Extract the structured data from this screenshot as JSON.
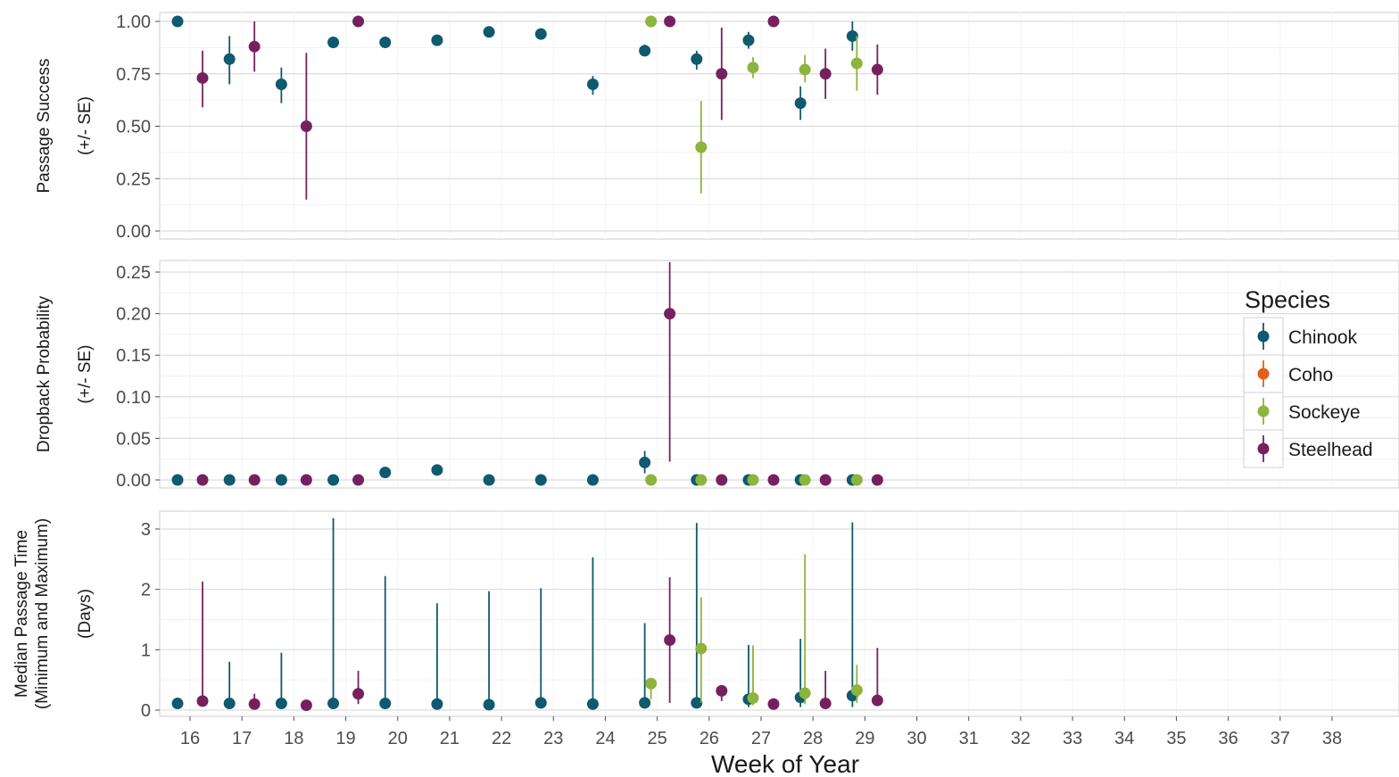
{
  "colors": {
    "Chinook": "#0f5a6e",
    "Coho": "#e0611e",
    "Sockeye": "#8db43c",
    "Steelhead": "#76215f"
  },
  "legend": {
    "title": "Species",
    "entries": [
      "Chinook",
      "Coho",
      "Sockeye",
      "Steelhead"
    ],
    "placement": "right"
  },
  "x_title": "Week of Year",
  "chart_data": [
    {
      "type": "scatter",
      "panel": "passage-success",
      "ylabel": [
        "Passage Success",
        "(+/- SE)"
      ],
      "ylim": [
        0,
        1
      ],
      "y_ticks": [
        "0.00",
        "0.25",
        "0.50",
        "0.75",
        "1.00"
      ],
      "y_tick_values": [
        0,
        0.25,
        0.5,
        0.75,
        1
      ],
      "x_ticks": [
        16,
        17,
        18,
        19,
        20,
        21,
        22,
        23,
        24,
        25,
        26,
        27,
        28,
        29,
        30,
        31,
        32,
        33,
        34,
        35,
        36,
        37,
        38
      ],
      "series": [
        {
          "name": "Chinook",
          "points": [
            {
              "x": 16,
              "y": 1.0,
              "lo": 1.0,
              "hi": 1.0
            },
            {
              "x": 17,
              "y": 0.82,
              "lo": 0.7,
              "hi": 0.93
            },
            {
              "x": 18,
              "y": 0.7,
              "lo": 0.61,
              "hi": 0.78
            },
            {
              "x": 19,
              "y": 0.9,
              "lo": 0.9,
              "hi": 0.9
            },
            {
              "x": 20,
              "y": 0.9,
              "lo": 0.9,
              "hi": 0.9
            },
            {
              "x": 21,
              "y": 0.91,
              "lo": 0.91,
              "hi": 0.91
            },
            {
              "x": 22,
              "y": 0.95,
              "lo": 0.95,
              "hi": 0.95
            },
            {
              "x": 23,
              "y": 0.94,
              "lo": 0.94,
              "hi": 0.94
            },
            {
              "x": 24,
              "y": 0.7,
              "lo": 0.65,
              "hi": 0.74
            },
            {
              "x": 25,
              "y": 0.86,
              "lo": 0.84,
              "hi": 0.89
            },
            {
              "x": 26,
              "y": 0.82,
              "lo": 0.77,
              "hi": 0.86
            },
            {
              "x": 27,
              "y": 0.91,
              "lo": 0.87,
              "hi": 0.95
            },
            {
              "x": 28,
              "y": 0.61,
              "lo": 0.53,
              "hi": 0.69
            },
            {
              "x": 29,
              "y": 0.93,
              "lo": 0.86,
              "hi": 1.0
            }
          ]
        },
        {
          "name": "Coho",
          "points": []
        },
        {
          "name": "Sockeye",
          "points": [
            {
              "x": 25,
              "y": 1.0,
              "lo": 1.0,
              "hi": 1.0
            },
            {
              "x": 26,
              "y": 0.4,
              "lo": 0.18,
              "hi": 0.62
            },
            {
              "x": 27,
              "y": 0.78,
              "lo": 0.73,
              "hi": 0.83
            },
            {
              "x": 28,
              "y": 0.77,
              "lo": 0.71,
              "hi": 0.84
            },
            {
              "x": 29,
              "y": 0.8,
              "lo": 0.67,
              "hi": 0.93
            }
          ]
        },
        {
          "name": "Steelhead",
          "points": [
            {
              "x": 16,
              "y": 0.73,
              "lo": 0.59,
              "hi": 0.86
            },
            {
              "x": 17,
              "y": 0.88,
              "lo": 0.76,
              "hi": 1.0
            },
            {
              "x": 18,
              "y": 0.5,
              "lo": 0.15,
              "hi": 0.85
            },
            {
              "x": 19,
              "y": 1.0,
              "lo": 1.0,
              "hi": 1.0
            },
            {
              "x": 25,
              "y": 1.0,
              "lo": 1.0,
              "hi": 1.0
            },
            {
              "x": 26,
              "y": 0.75,
              "lo": 0.53,
              "hi": 0.97
            },
            {
              "x": 27,
              "y": 1.0,
              "lo": 1.0,
              "hi": 1.0
            },
            {
              "x": 28,
              "y": 0.75,
              "lo": 0.63,
              "hi": 0.87
            },
            {
              "x": 29,
              "y": 0.77,
              "lo": 0.65,
              "hi": 0.89
            }
          ]
        }
      ]
    },
    {
      "type": "scatter",
      "panel": "dropback-probability",
      "ylabel": [
        "Dropback Probability",
        "(+/- SE)"
      ],
      "ylim": [
        0,
        0.25
      ],
      "y_ticks": [
        "0.00",
        "0.05",
        "0.10",
        "0.15",
        "0.20",
        "0.25"
      ],
      "y_tick_values": [
        0,
        0.05,
        0.1,
        0.15,
        0.2,
        0.25
      ],
      "x_ticks": [
        16,
        17,
        18,
        19,
        20,
        21,
        22,
        23,
        24,
        25,
        26,
        27,
        28,
        29,
        30,
        31,
        32,
        33,
        34,
        35,
        36,
        37,
        38
      ],
      "series": [
        {
          "name": "Chinook",
          "points": [
            {
              "x": 16,
              "y": 0,
              "lo": 0,
              "hi": 0
            },
            {
              "x": 17,
              "y": 0,
              "lo": 0,
              "hi": 0
            },
            {
              "x": 18,
              "y": 0,
              "lo": 0,
              "hi": 0
            },
            {
              "x": 19,
              "y": 0,
              "lo": 0,
              "hi": 0
            },
            {
              "x": 20,
              "y": 0.009,
              "lo": 0.009,
              "hi": 0.009
            },
            {
              "x": 21,
              "y": 0.012,
              "lo": 0.012,
              "hi": 0.012
            },
            {
              "x": 22,
              "y": 0,
              "lo": 0,
              "hi": 0
            },
            {
              "x": 23,
              "y": 0,
              "lo": 0,
              "hi": 0
            },
            {
              "x": 24,
              "y": 0,
              "lo": 0,
              "hi": 0
            },
            {
              "x": 25,
              "y": 0.021,
              "lo": 0.008,
              "hi": 0.035
            },
            {
              "x": 26,
              "y": 0,
              "lo": 0,
              "hi": 0
            },
            {
              "x": 27,
              "y": 0,
              "lo": 0,
              "hi": 0
            },
            {
              "x": 28,
              "y": 0,
              "lo": 0,
              "hi": 0
            },
            {
              "x": 29,
              "y": 0,
              "lo": 0,
              "hi": 0
            }
          ]
        },
        {
          "name": "Coho",
          "points": []
        },
        {
          "name": "Sockeye",
          "points": [
            {
              "x": 25,
              "y": 0,
              "lo": 0,
              "hi": 0
            },
            {
              "x": 26,
              "y": 0,
              "lo": 0,
              "hi": 0
            },
            {
              "x": 27,
              "y": 0,
              "lo": 0,
              "hi": 0
            },
            {
              "x": 28,
              "y": 0,
              "lo": 0,
              "hi": 0
            },
            {
              "x": 29,
              "y": 0,
              "lo": 0,
              "hi": 0
            }
          ]
        },
        {
          "name": "Steelhead",
          "points": [
            {
              "x": 16,
              "y": 0,
              "lo": 0,
              "hi": 0
            },
            {
              "x": 17,
              "y": 0,
              "lo": 0,
              "hi": 0
            },
            {
              "x": 18,
              "y": 0,
              "lo": 0,
              "hi": 0
            },
            {
              "x": 19,
              "y": 0,
              "lo": 0,
              "hi": 0
            },
            {
              "x": 25,
              "y": 0.2,
              "lo": 0.022,
              "hi": 0.262
            },
            {
              "x": 26,
              "y": 0,
              "lo": 0,
              "hi": 0
            },
            {
              "x": 27,
              "y": 0,
              "lo": 0,
              "hi": 0
            },
            {
              "x": 28,
              "y": 0,
              "lo": 0,
              "hi": 0
            },
            {
              "x": 29,
              "y": 0,
              "lo": 0,
              "hi": 0
            }
          ]
        }
      ]
    },
    {
      "type": "scatter",
      "panel": "median-passage-time",
      "ylabel": [
        "Median Passage Time",
        "(Minimum and Maximum)",
        "(Days)"
      ],
      "ylim": [
        0,
        3
      ],
      "y_ticks": [
        "0",
        "1",
        "2",
        "3"
      ],
      "y_tick_values": [
        0,
        1,
        2,
        3
      ],
      "x_ticks": [
        16,
        17,
        18,
        19,
        20,
        21,
        22,
        23,
        24,
        25,
        26,
        27,
        28,
        29,
        30,
        31,
        32,
        33,
        34,
        35,
        36,
        37,
        38
      ],
      "series": [
        {
          "name": "Chinook",
          "points": [
            {
              "x": 16,
              "y": 0.11,
              "lo": 0.04,
              "hi": 0.13
            },
            {
              "x": 17,
              "y": 0.11,
              "lo": 0.04,
              "hi": 0.8
            },
            {
              "x": 18,
              "y": 0.11,
              "lo": 0.04,
              "hi": 0.95
            },
            {
              "x": 19,
              "y": 0.11,
              "lo": 0.03,
              "hi": 3.18
            },
            {
              "x": 20,
              "y": 0.11,
              "lo": 0.03,
              "hi": 2.22
            },
            {
              "x": 21,
              "y": 0.1,
              "lo": 0.03,
              "hi": 1.77
            },
            {
              "x": 22,
              "y": 0.09,
              "lo": 0.03,
              "hi": 1.97
            },
            {
              "x": 23,
              "y": 0.12,
              "lo": 0.03,
              "hi": 2.02
            },
            {
              "x": 24,
              "y": 0.1,
              "lo": 0.03,
              "hi": 2.53
            },
            {
              "x": 25,
              "y": 0.12,
              "lo": 0.05,
              "hi": 1.44
            },
            {
              "x": 26,
              "y": 0.12,
              "lo": 0.03,
              "hi": 3.1
            },
            {
              "x": 27,
              "y": 0.18,
              "lo": 0.05,
              "hi": 1.08
            },
            {
              "x": 28,
              "y": 0.21,
              "lo": 0.05,
              "hi": 1.18
            },
            {
              "x": 29,
              "y": 0.24,
              "lo": 0.05,
              "hi": 3.11
            }
          ]
        },
        {
          "name": "Coho",
          "points": []
        },
        {
          "name": "Sockeye",
          "points": [
            {
              "x": 25,
              "y": 0.44,
              "lo": 0.18,
              "hi": 0.44
            },
            {
              "x": 26,
              "y": 1.02,
              "lo": 0.12,
              "hi": 1.87
            },
            {
              "x": 27,
              "y": 0.2,
              "lo": 0.08,
              "hi": 1.07
            },
            {
              "x": 28,
              "y": 0.28,
              "lo": 0.1,
              "hi": 2.58
            },
            {
              "x": 29,
              "y": 0.33,
              "lo": 0.12,
              "hi": 0.75
            }
          ]
        },
        {
          "name": "Steelhead",
          "points": [
            {
              "x": 16,
              "y": 0.15,
              "lo": 0.08,
              "hi": 2.13
            },
            {
              "x": 17,
              "y": 0.1,
              "lo": 0.05,
              "hi": 0.27
            },
            {
              "x": 18,
              "y": 0.08,
              "lo": 0.05,
              "hi": 0.1
            },
            {
              "x": 19,
              "y": 0.27,
              "lo": 0.1,
              "hi": 0.65
            },
            {
              "x": 25,
              "y": 1.16,
              "lo": 0.12,
              "hi": 2.2
            },
            {
              "x": 26,
              "y": 0.32,
              "lo": 0.15,
              "hi": 0.32
            },
            {
              "x": 27,
              "y": 0.1,
              "lo": 0.05,
              "hi": 0.1
            },
            {
              "x": 28,
              "y": 0.11,
              "lo": 0.05,
              "hi": 0.65
            },
            {
              "x": 29,
              "y": 0.16,
              "lo": 0.08,
              "hi": 1.03
            }
          ]
        }
      ]
    }
  ]
}
